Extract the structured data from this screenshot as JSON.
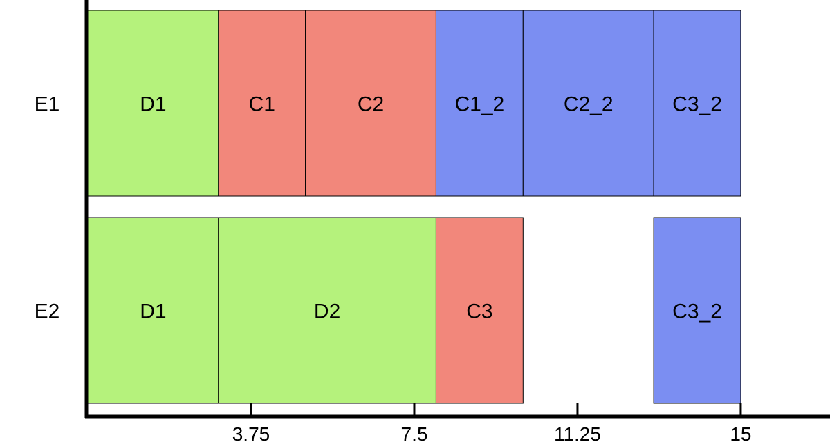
{
  "chart_data": {
    "type": "bar",
    "orientation": "horizontal-stacked-gantt",
    "title": "",
    "xlabel": "",
    "ylabel": "",
    "xlim": [
      0,
      17
    ],
    "x_ticks": [
      3.75,
      7.5,
      11.25,
      15
    ],
    "x_tick_labels": [
      "3.75",
      "7.5",
      "11.25",
      "15"
    ],
    "grid": false,
    "legend": "none",
    "colors": {
      "D": "#b5f27c",
      "C": "#f2877b",
      "C_2": "#7b8ef2",
      "edge": "#000000",
      "axis": "#000000"
    },
    "rows": [
      {
        "label": "E1",
        "segments": [
          {
            "label": "D1",
            "start": 0,
            "end": 3,
            "group": "D"
          },
          {
            "label": "C1",
            "start": 3,
            "end": 5,
            "group": "C"
          },
          {
            "label": "C2",
            "start": 5,
            "end": 8,
            "group": "C"
          },
          {
            "label": "C1_2",
            "start": 8,
            "end": 10,
            "group": "C_2"
          },
          {
            "label": "C2_2",
            "start": 10,
            "end": 13,
            "group": "C_2"
          },
          {
            "label": "C3_2",
            "start": 13,
            "end": 15,
            "group": "C_2"
          }
        ]
      },
      {
        "label": "E2",
        "segments": [
          {
            "label": "D1",
            "start": 0,
            "end": 3,
            "group": "D"
          },
          {
            "label": "D2",
            "start": 3,
            "end": 8,
            "group": "D"
          },
          {
            "label": "C3",
            "start": 8,
            "end": 10,
            "group": "C"
          },
          {
            "label": "C3_2",
            "start": 13,
            "end": 15,
            "group": "C_2"
          }
        ]
      }
    ]
  }
}
